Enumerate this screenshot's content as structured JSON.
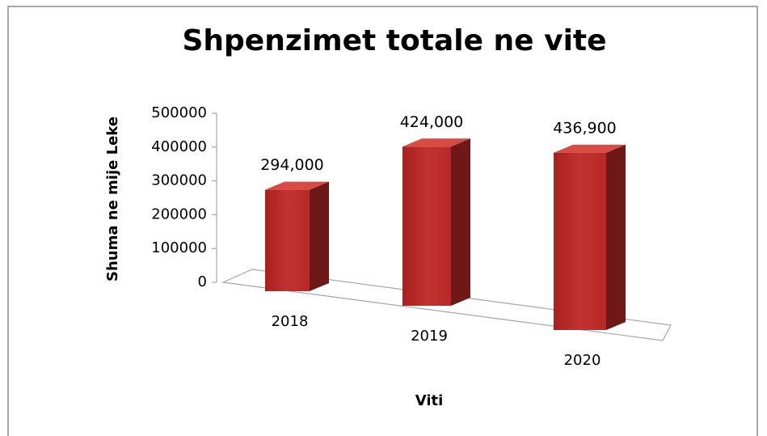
{
  "chart_data": {
    "type": "bar3d",
    "title": "Shpenzimet totale ne vite",
    "x_label": "Viti",
    "y_label": "Shuma ne mije Leke",
    "categories": [
      "2018",
      "2019",
      "2020"
    ],
    "values": [
      294000,
      424000,
      436900
    ],
    "value_labels": [
      "294,000",
      "424,000",
      "436,900"
    ],
    "color": "#c0322f",
    "ylim": [
      0,
      500000
    ],
    "yticks": [
      0,
      100000,
      200000,
      300000,
      400000,
      500000
    ]
  }
}
